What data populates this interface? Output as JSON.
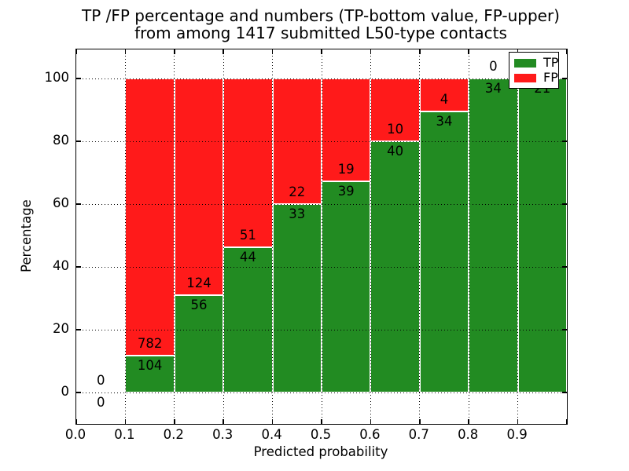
{
  "figure": {
    "title_line1": "TP /FP percentage and numbers (TP-bottom value, FP-upper)",
    "title_line2": "from among 1417 submitted L50-type contacts",
    "ylabel": "Percentage",
    "xlabel": "Predicted probability"
  },
  "legend": {
    "position": "upper right",
    "items": [
      {
        "label": "TP",
        "color": "#228b22"
      },
      {
        "label": "FP",
        "color": "#ff1a1a"
      }
    ]
  },
  "axes": {
    "xticks": [
      {
        "v": 0.0,
        "label": "0.0"
      },
      {
        "v": 0.1,
        "label": "0.1"
      },
      {
        "v": 0.2,
        "label": "0.2"
      },
      {
        "v": 0.3,
        "label": "0.3"
      },
      {
        "v": 0.4,
        "label": "0.4"
      },
      {
        "v": 0.5,
        "label": "0.5"
      },
      {
        "v": 0.6,
        "label": "0.6"
      },
      {
        "v": 0.7,
        "label": "0.7"
      },
      {
        "v": 0.8,
        "label": "0.8"
      },
      {
        "v": 0.9,
        "label": "0.9"
      },
      {
        "v": 1.0,
        "label": ""
      }
    ],
    "yticks": [
      {
        "v": 0,
        "label": "0"
      },
      {
        "v": 20,
        "label": "20"
      },
      {
        "v": 40,
        "label": "40"
      },
      {
        "v": 60,
        "label": "60"
      },
      {
        "v": 80,
        "label": "80"
      },
      {
        "v": 100,
        "label": "100"
      }
    ],
    "grid_x": [
      0.1,
      0.2,
      0.3,
      0.4,
      0.5,
      0.6,
      0.7,
      0.8,
      0.9
    ],
    "grid_y": [
      0,
      20,
      40,
      60,
      80,
      100
    ]
  },
  "chart_data": {
    "type": "bar",
    "stacked": true,
    "title": "TP /FP percentage and numbers (TP-bottom value, FP-upper) from among 1417 submitted L50-type contacts",
    "xlabel": "Predicted probability",
    "ylabel": "Percentage",
    "xlim": [
      0.0,
      1.0
    ],
    "ylim": [
      -10,
      110
    ],
    "grid": true,
    "legend_position": "upper right",
    "total_contacts": 1417,
    "colors": {
      "tp": "#228b22",
      "fp": "#ff1a1a"
    },
    "categories": [
      "0.0-0.1",
      "0.1-0.2",
      "0.2-0.3",
      "0.3-0.4",
      "0.4-0.5",
      "0.5-0.6",
      "0.6-0.7",
      "0.7-0.8",
      "0.8-0.9",
      "0.9-1.0"
    ],
    "series": [
      {
        "name": "TP",
        "values": [
          0,
          104,
          56,
          44,
          33,
          39,
          40,
          34,
          34,
          21
        ]
      },
      {
        "name": "FP",
        "values": [
          0,
          782,
          124,
          51,
          22,
          19,
          10,
          4,
          0,
          0
        ]
      }
    ],
    "bins": [
      {
        "x0": 0.0,
        "x1": 0.1,
        "tp": 0,
        "fp": 0,
        "tp_pct": 0,
        "fp_label": "0",
        "tp_label": "0",
        "has_bar": false
      },
      {
        "x0": 0.1,
        "x1": 0.2,
        "tp": 104,
        "fp": 782,
        "tp_pct": 11.74,
        "fp_label": "782",
        "tp_label": "104",
        "has_bar": true
      },
      {
        "x0": 0.2,
        "x1": 0.3,
        "tp": 56,
        "fp": 124,
        "tp_pct": 31.11,
        "fp_label": "124",
        "tp_label": "56",
        "has_bar": true
      },
      {
        "x0": 0.3,
        "x1": 0.4,
        "tp": 44,
        "fp": 51,
        "tp_pct": 46.32,
        "fp_label": "51",
        "tp_label": "44",
        "has_bar": true
      },
      {
        "x0": 0.4,
        "x1": 0.5,
        "tp": 33,
        "fp": 22,
        "tp_pct": 60.0,
        "fp_label": "22",
        "tp_label": "33",
        "has_bar": true
      },
      {
        "x0": 0.5,
        "x1": 0.6,
        "tp": 39,
        "fp": 19,
        "tp_pct": 67.24,
        "fp_label": "19",
        "tp_label": "39",
        "has_bar": true
      },
      {
        "x0": 0.6,
        "x1": 0.7,
        "tp": 40,
        "fp": 10,
        "tp_pct": 80.0,
        "fp_label": "10",
        "tp_label": "40",
        "has_bar": true
      },
      {
        "x0": 0.7,
        "x1": 0.8,
        "tp": 34,
        "fp": 4,
        "tp_pct": 89.47,
        "fp_label": "4",
        "tp_label": "34",
        "has_bar": true
      },
      {
        "x0": 0.8,
        "x1": 0.9,
        "tp": 34,
        "fp": 0,
        "tp_pct": 100.0,
        "fp_label": "0",
        "tp_label": "34",
        "has_bar": true
      },
      {
        "x0": 0.9,
        "x1": 1.0,
        "tp": 21,
        "fp": 0,
        "tp_pct": 100.0,
        "fp_label": "",
        "tp_label": "21",
        "has_bar": true
      }
    ]
  }
}
